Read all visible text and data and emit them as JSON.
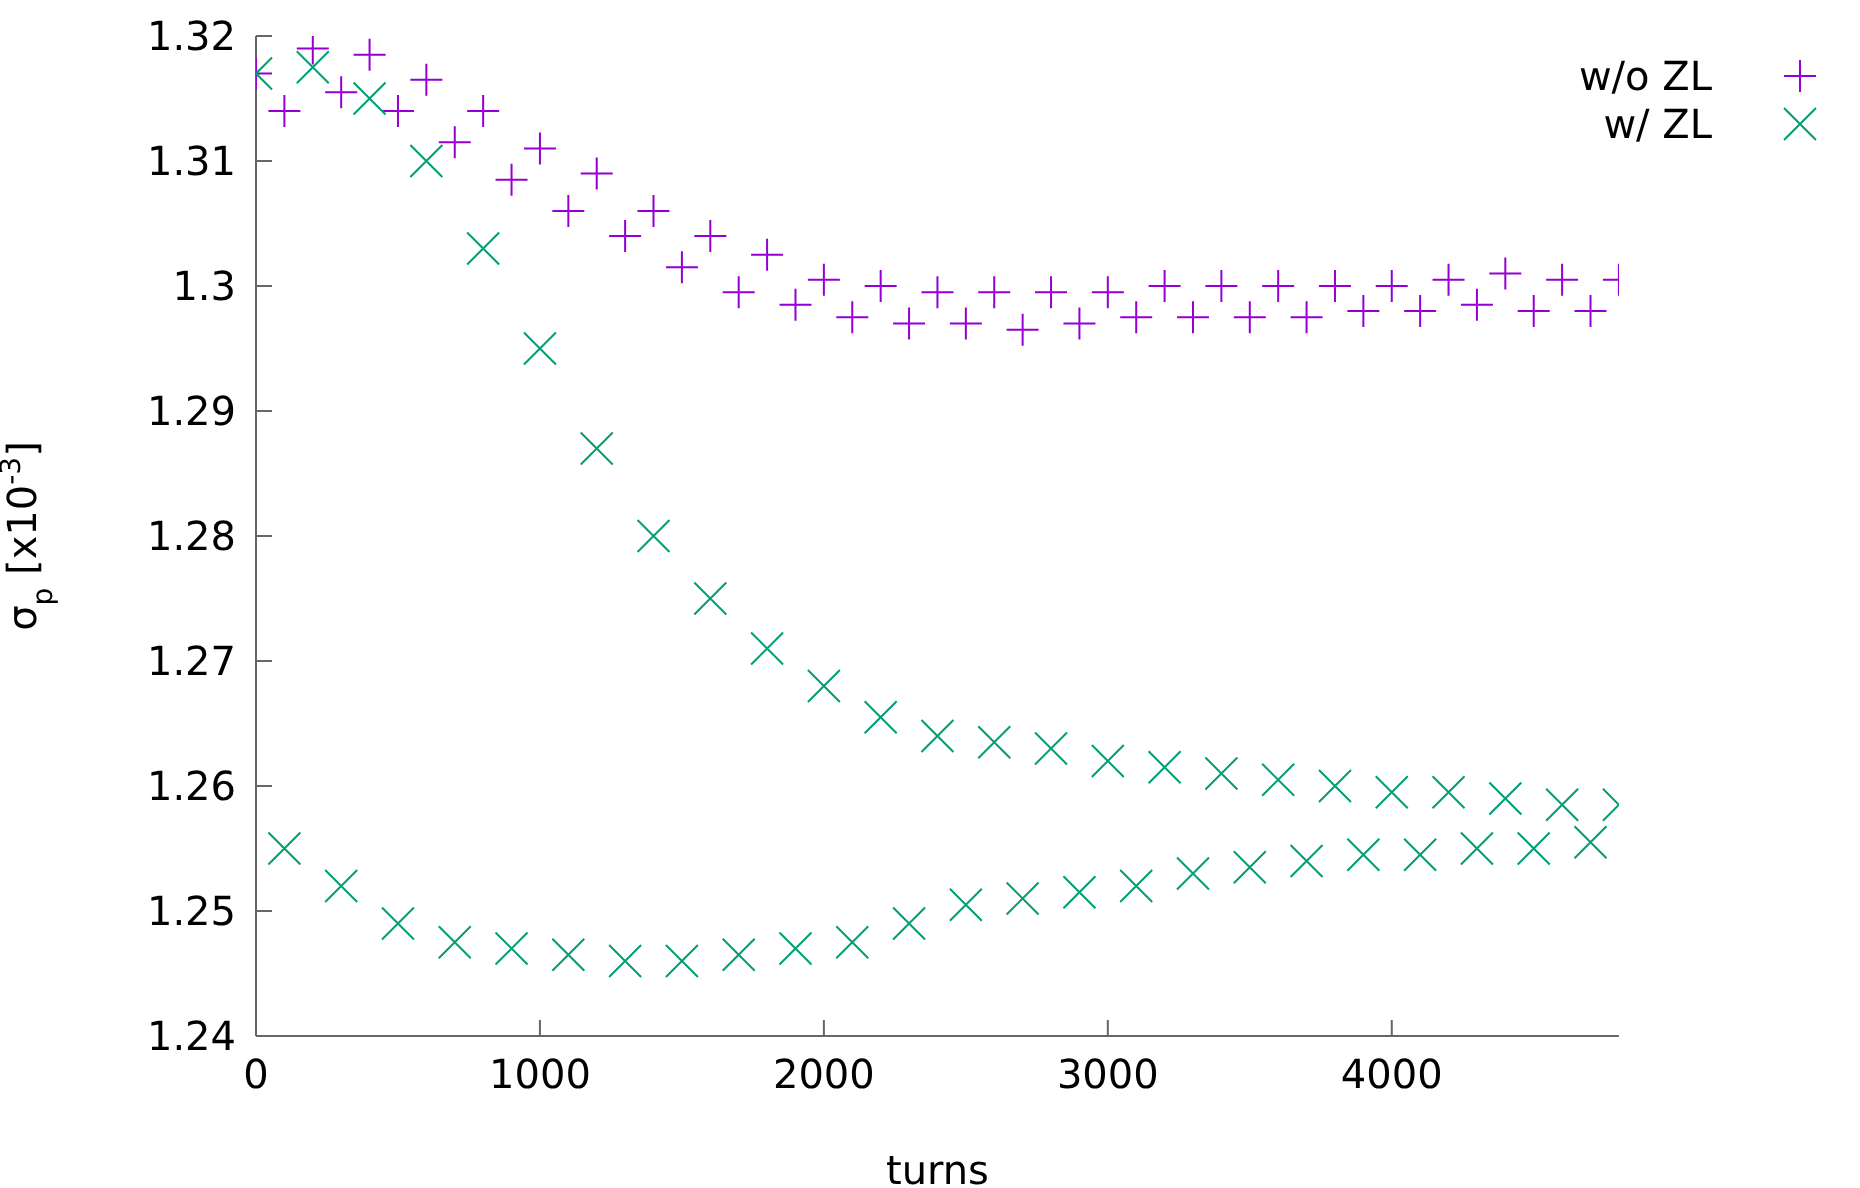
{
  "chart_data": {
    "type": "scatter",
    "xlabel": "turns",
    "ylabel": "σ$_{p}$ [x10$^{-3}$]",
    "xlim": [
      0,
      4800
    ],
    "xticks": [
      0,
      1000,
      2000,
      3000,
      4000
    ],
    "ylim": [
      1.24,
      1.32
    ],
    "yticks": [
      1.24,
      1.25,
      1.26,
      1.27,
      1.28,
      1.29,
      1.3,
      1.31,
      1.32
    ],
    "grid": false,
    "legend": "top right",
    "series": [
      {
        "name": "w/o ZL",
        "color": "#9400d3",
        "marker": "plus",
        "x": [
          0,
          100,
          200,
          300,
          400,
          500,
          600,
          700,
          800,
          900,
          1000,
          1100,
          1200,
          1300,
          1400,
          1500,
          1600,
          1700,
          1800,
          1900,
          2000,
          2100,
          2200,
          2300,
          2400,
          2500,
          2600,
          2700,
          2800,
          2900,
          3000,
          3100,
          3200,
          3300,
          3400,
          3500,
          3600,
          3700,
          3800,
          3900,
          4000,
          4100,
          4200,
          4300,
          4400,
          4500,
          4600,
          4700,
          4800
        ],
        "values": [
          1.317,
          1.314,
          1.319,
          1.3155,
          1.3185,
          1.314,
          1.3165,
          1.3115,
          1.314,
          1.3085,
          1.311,
          1.306,
          1.309,
          1.304,
          1.306,
          1.3015,
          1.304,
          1.2995,
          1.3025,
          1.2985,
          1.3005,
          1.2975,
          1.3,
          1.297,
          1.2995,
          1.297,
          1.2995,
          1.2965,
          1.2995,
          1.297,
          1.2995,
          1.2975,
          1.3,
          1.2975,
          1.3,
          1.2975,
          1.3,
          1.2975,
          1.3,
          1.298,
          1.3,
          1.298,
          1.3005,
          1.2985,
          1.301,
          1.298,
          1.3005,
          1.298,
          1.3005
        ]
      },
      {
        "name": "w/ ZL",
        "color": "#009e73",
        "marker": "cross",
        "x": [
          0,
          100,
          200,
          300,
          400,
          500,
          600,
          700,
          800,
          900,
          1000,
          1100,
          1200,
          1300,
          1400,
          1500,
          1600,
          1700,
          1800,
          1900,
          2000,
          2100,
          2200,
          2300,
          2400,
          2500,
          2600,
          2700,
          2800,
          2900,
          3000,
          3100,
          3200,
          3300,
          3400,
          3500,
          3600,
          3700,
          3800,
          3900,
          4000,
          4100,
          4200,
          4300,
          4400,
          4500,
          4600,
          4700,
          4800
        ],
        "values": [
          1.317,
          1.255,
          1.3175,
          1.252,
          1.315,
          1.249,
          1.31,
          1.2475,
          1.303,
          1.247,
          1.295,
          1.2465,
          1.287,
          1.246,
          1.28,
          1.246,
          1.275,
          1.2465,
          1.271,
          1.247,
          1.268,
          1.2475,
          1.2655,
          1.249,
          1.264,
          1.2505,
          1.2635,
          1.251,
          1.263,
          1.2515,
          1.262,
          1.252,
          1.2615,
          1.253,
          1.261,
          1.2535,
          1.2605,
          1.254,
          1.26,
          1.2545,
          1.2595,
          1.2545,
          1.2595,
          1.255,
          1.259,
          1.255,
          1.2585,
          1.2555,
          1.2585
        ]
      }
    ]
  }
}
